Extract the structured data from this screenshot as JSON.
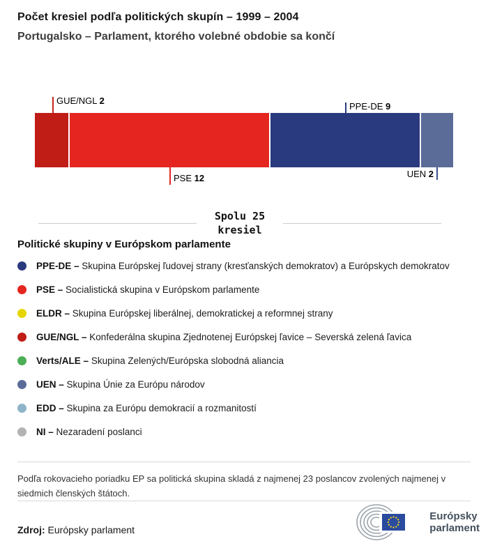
{
  "header": {
    "title": "Počet kresiel podľa politických skupín – 1999 – 2004",
    "subtitle": "Portugalsko – Parlament, ktorého volebné obdobie sa končí"
  },
  "chart_data": {
    "type": "bar",
    "variant": "horizontal-stacked-seats",
    "title": "Počet kresiel podľa politických skupín – 1999 – 2004",
    "subtitle": "Portugalsko – Parlament, ktorého volebné obdobie sa končí",
    "total_seats": 25,
    "segments": [
      {
        "group": "GUE/NGL",
        "seats": 2,
        "color": "#c01d17",
        "label_position": "above"
      },
      {
        "group": "PSE",
        "seats": 12,
        "color": "#e52620",
        "label_position": "below"
      },
      {
        "group": "PPE-DE",
        "seats": 9,
        "color": "#2a3a7e",
        "label_position": "above"
      },
      {
        "group": "UEN",
        "seats": 2,
        "color": "#5b6c99",
        "label_position": "below"
      }
    ]
  },
  "total": {
    "line1": "Spolu 25",
    "line2": "kresiel"
  },
  "legend": {
    "heading": "Politické skupiny v Európskom parlamente",
    "items": [
      {
        "abbr": "PPE-DE –",
        "desc": "Skupina Európskej ľudovej strany (kresťanských demokratov) a Európskych demokratov",
        "color": "#2a3a7e"
      },
      {
        "abbr": "PSE –",
        "desc": "Socialistická skupina v Európskom parlamente",
        "color": "#e52620"
      },
      {
        "abbr": "ELDR –",
        "desc": "Skupina Európskej liberálnej, demokratickej a reformnej strany",
        "color": "#e6d500"
      },
      {
        "abbr": "GUE/NGL –",
        "desc": "Konfederálna skupina Zjednotenej Európskej ľavice – Severská zelená ľavica",
        "color": "#c01d17"
      },
      {
        "abbr": "Verts/ALE –",
        "desc": "Skupina Zelených/Európska slobodná aliancia",
        "color": "#4cae57"
      },
      {
        "abbr": "UEN –",
        "desc": "Skupina Únie za Európu národov",
        "color": "#5b6c99"
      },
      {
        "abbr": "EDD –",
        "desc": "Skupina za Európu demokracií a rozmanitostí",
        "color": "#8fb4c9"
      },
      {
        "abbr": "NI –",
        "desc": "Nezaradení poslanci",
        "color": "#b3b3b3"
      }
    ]
  },
  "footer": {
    "note": "Podľa rokovacieho poriadku EP sa politická skupina skladá z najmenej 23 poslancov zvolených najmenej v siedmich členských štátoch.",
    "source_label": "Zdroj:",
    "source_value": "Európsky parlament",
    "logo_line1": "Európsky",
    "logo_line2": "parlament"
  }
}
